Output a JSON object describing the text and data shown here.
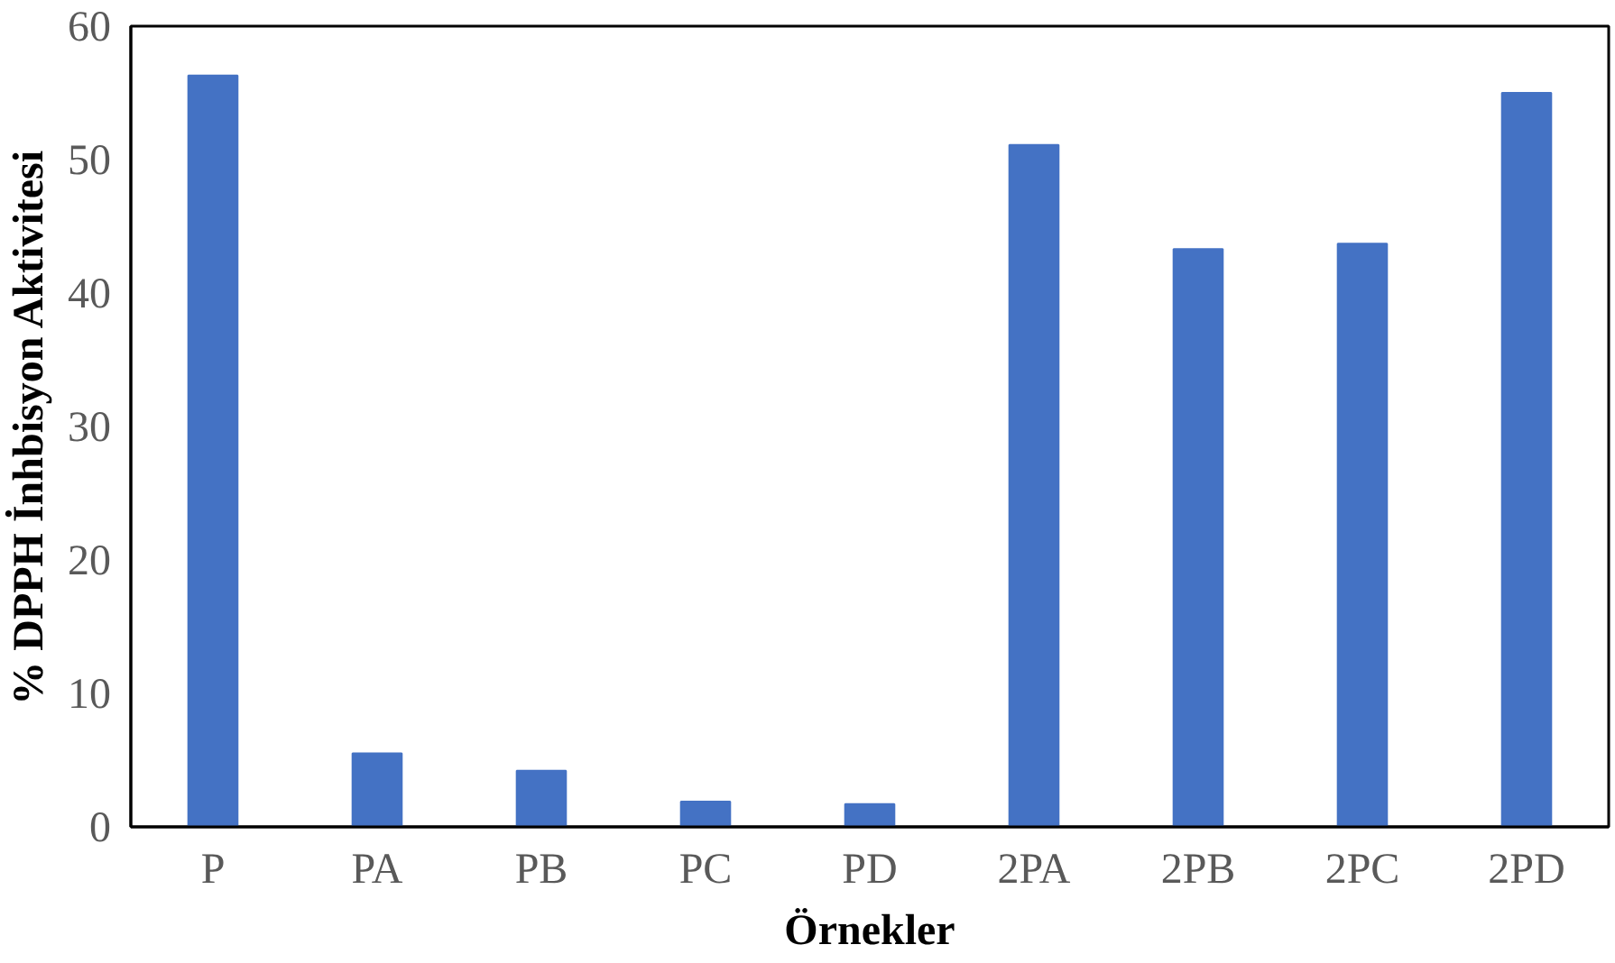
{
  "chart_data": {
    "type": "bar",
    "xlabel": "Örnekler",
    "ylabel": "% DPPH İnhbisyon Aktivitesi",
    "categories": [
      "P",
      "PA",
      "PB",
      "PC",
      "PD",
      "2PA",
      "2PB",
      "2PC",
      "2PD"
    ],
    "values": [
      56.3,
      5.5,
      4.2,
      1.9,
      1.7,
      51.1,
      43.3,
      43.7,
      55.0
    ],
    "color": "#4472c4",
    "ylim": [
      0,
      60
    ],
    "yticks": [
      0,
      10,
      20,
      30,
      40,
      50,
      60
    ],
    "grid": false
  }
}
